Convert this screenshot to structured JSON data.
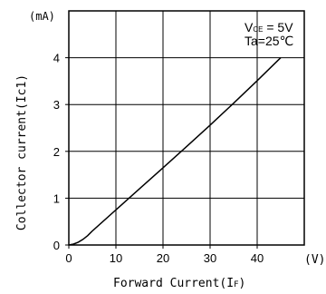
{
  "chart_data": {
    "type": "line",
    "x_unit": "(V)",
    "y_unit": "(mA)",
    "xlabel_main": "Forward Current(",
    "xlabel_sub": "I",
    "xlabel_subsub": "F",
    "xlabel_close": ")",
    "ylabel": "Collector current(Ic1)",
    "xlim": [
      0,
      50
    ],
    "ylim": [
      0,
      5
    ],
    "x_ticks": [
      0,
      10,
      20,
      30,
      40
    ],
    "y_ticks": [
      0,
      1,
      2,
      3,
      4
    ],
    "grid": true,
    "annotation": {
      "vce_label": "V",
      "vce_sub": "CE",
      "vce_value": " = 5V",
      "ta": "Ta=25℃"
    },
    "series": [
      {
        "x": [
          0,
          1,
          2,
          3,
          4,
          5,
          10,
          15,
          20,
          25,
          30,
          35,
          40,
          45
        ],
        "y": [
          0,
          0.02,
          0.06,
          0.12,
          0.2,
          0.3,
          0.75,
          1.2,
          1.65,
          2.1,
          2.56,
          3.03,
          3.51,
          4.0
        ]
      }
    ]
  }
}
